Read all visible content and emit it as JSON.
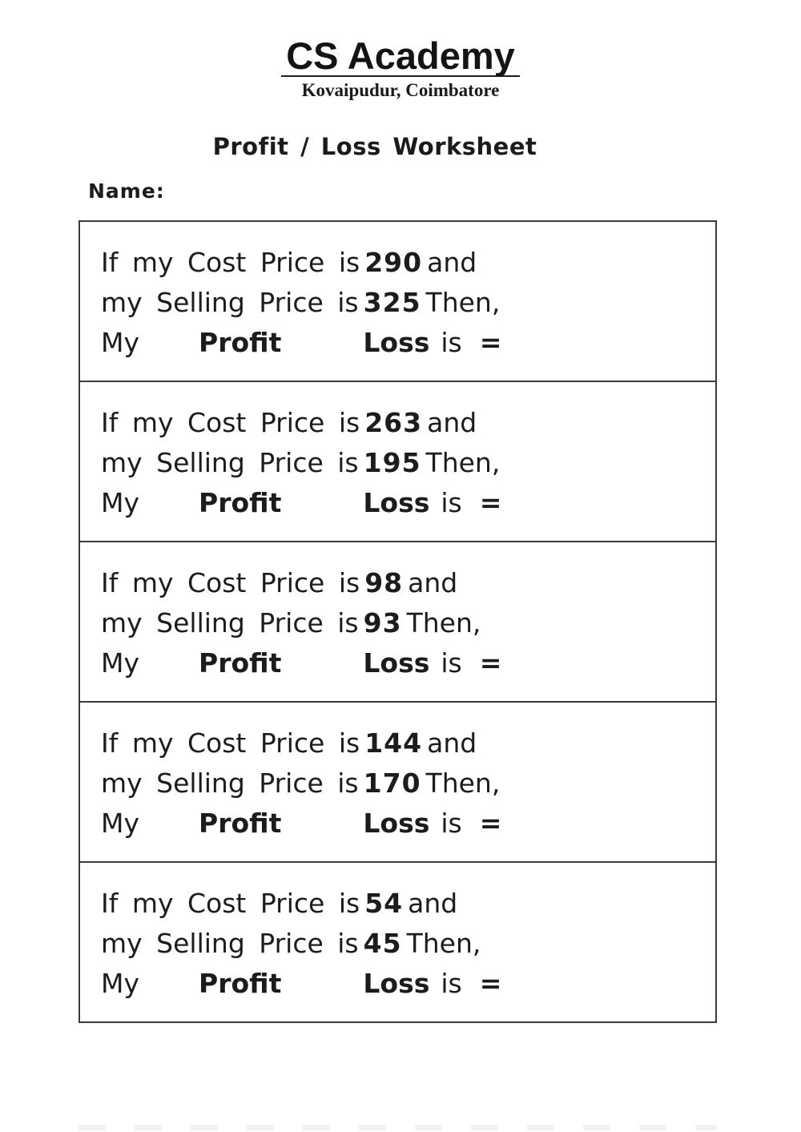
{
  "header": {
    "academy_name": "CS Academy",
    "location": "Kovaipudur, Coimbatore"
  },
  "worksheet": {
    "title": "Profit / Loss Worksheet",
    "name_label": "Name:",
    "line1_prefix": "If my Cost Price is",
    "line1_suffix": "and",
    "line2_prefix": "my Selling Price is",
    "line2_suffix": "Then,",
    "line3": {
      "my": "My",
      "profit": "Profit",
      "loss": "Loss",
      "is": "is",
      "equals": "="
    },
    "problems": [
      {
        "cost_price": "290",
        "selling_price": "325"
      },
      {
        "cost_price": "263",
        "selling_price": "195"
      },
      {
        "cost_price": "98",
        "selling_price": "93"
      },
      {
        "cost_price": "144",
        "selling_price": "170"
      },
      {
        "cost_price": "54",
        "selling_price": "45"
      }
    ]
  },
  "colors": {
    "text": "#1c1c1c",
    "box_border": "#3a3a3a",
    "background": "#ffffff"
  }
}
